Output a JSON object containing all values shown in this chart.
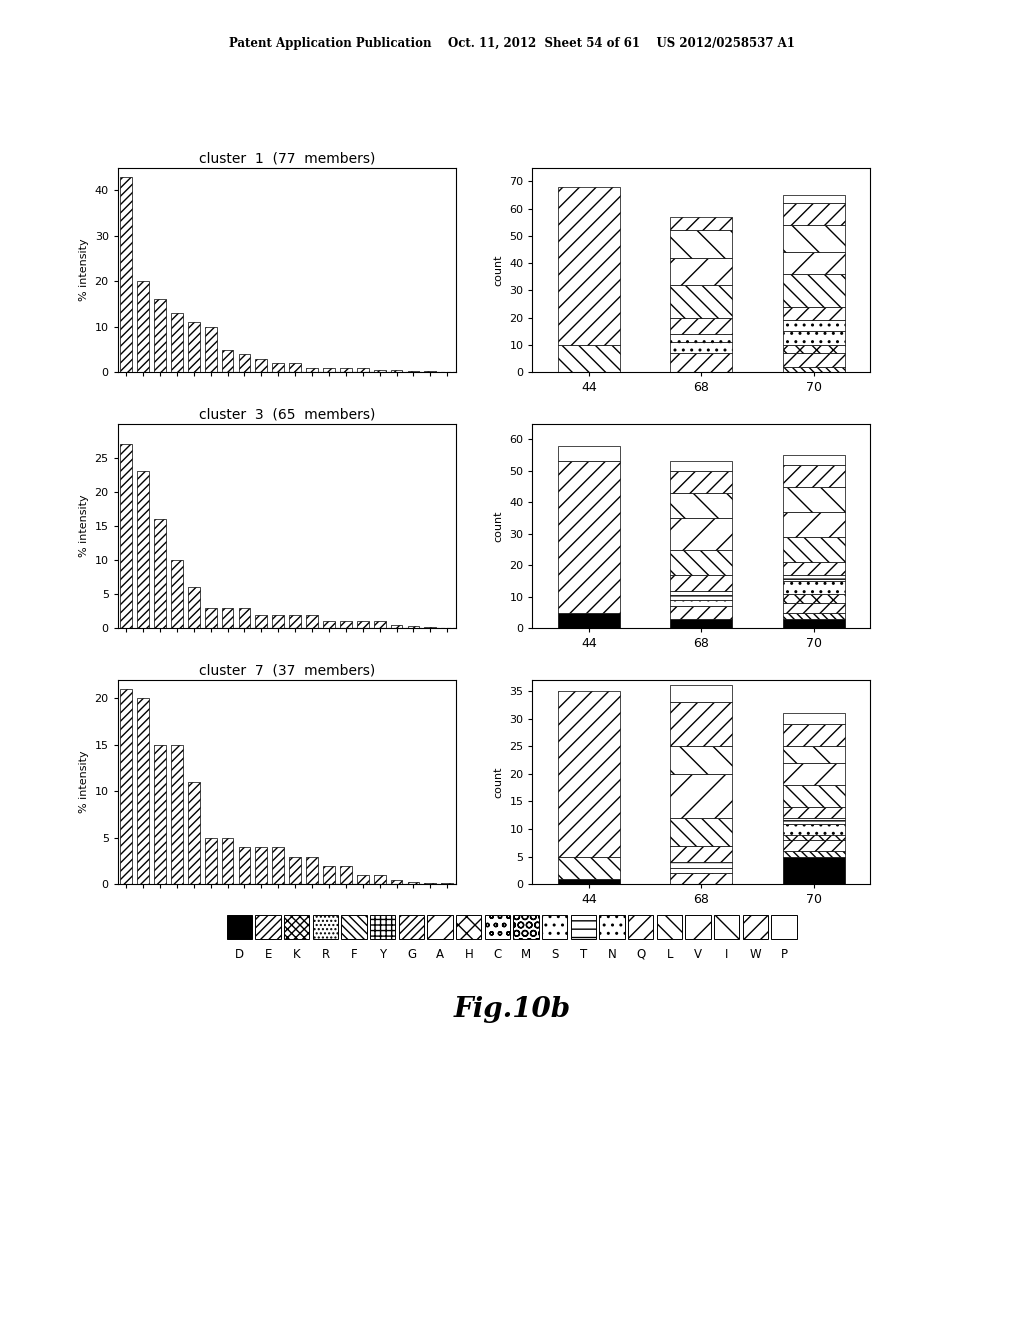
{
  "header_text": "Patent Application Publication    Oct. 11, 2012  Sheet 54 of 61    US 2012/0258537 A1",
  "fig_label": "Fig.10b",
  "clusters": [
    {
      "title": "cluster  1  (77  members)",
      "bar_values": [
        43,
        20,
        16,
        13,
        11,
        10,
        5,
        4,
        3,
        2,
        2,
        1,
        1,
        1,
        1,
        0.5,
        0.5,
        0.3,
        0.2,
        0.1
      ],
      "ylim": [
        0,
        45
      ],
      "yticks": [
        0,
        10,
        20,
        30,
        40
      ],
      "count_ylim": [
        0,
        75
      ],
      "count_yticks": [
        0,
        10,
        20,
        30,
        40,
        50,
        60,
        70
      ],
      "stack_44": [
        0,
        0,
        0,
        0,
        0,
        0,
        0,
        0,
        0,
        0,
        0,
        0,
        0,
        0,
        0,
        10,
        0,
        0,
        58,
        0
      ],
      "stack_68": [
        0,
        0,
        0,
        0,
        0,
        0,
        0,
        7,
        0,
        0,
        0,
        4,
        0,
        3,
        6,
        12,
        10,
        10,
        5,
        0
      ],
      "stack_70": [
        0,
        0,
        0,
        0,
        2,
        0,
        0,
        5,
        3,
        0,
        0,
        5,
        0,
        4,
        5,
        12,
        8,
        10,
        8,
        3
      ]
    },
    {
      "title": "cluster  3  (65  members)",
      "bar_values": [
        27,
        23,
        16,
        10,
        6,
        3,
        3,
        3,
        2,
        2,
        2,
        2,
        1,
        1,
        1,
        1,
        0.5,
        0.3,
        0.2,
        0.1
      ],
      "ylim": [
        0,
        30
      ],
      "yticks": [
        0,
        5,
        10,
        15,
        20,
        25
      ],
      "count_ylim": [
        0,
        65
      ],
      "count_yticks": [
        0,
        10,
        20,
        30,
        40,
        50,
        60
      ],
      "stack_44": [
        5,
        0,
        0,
        0,
        0,
        0,
        0,
        0,
        0,
        0,
        0,
        0,
        0,
        0,
        0,
        0,
        0,
        0,
        48,
        5
      ],
      "stack_68": [
        3,
        0,
        0,
        0,
        0,
        0,
        0,
        4,
        0,
        0,
        0,
        2,
        3,
        0,
        5,
        8,
        10,
        8,
        7,
        3
      ],
      "stack_70": [
        3,
        0,
        0,
        0,
        2,
        0,
        0,
        3,
        3,
        0,
        0,
        4,
        2,
        0,
        4,
        8,
        8,
        8,
        7,
        3
      ]
    },
    {
      "title": "cluster  7  (37  members)",
      "bar_values": [
        21,
        20,
        15,
        15,
        11,
        5,
        5,
        4,
        4,
        4,
        3,
        3,
        2,
        2,
        1,
        1,
        0.5,
        0.3,
        0.2,
        0.1
      ],
      "ylim": [
        0,
        22
      ],
      "yticks": [
        0,
        5,
        10,
        15,
        20
      ],
      "count_ylim": [
        0,
        37
      ],
      "count_yticks": [
        0,
        5,
        10,
        15,
        20,
        25,
        30,
        35
      ],
      "stack_44": [
        1,
        0,
        0,
        0,
        0,
        0,
        0,
        0,
        0,
        0,
        0,
        0,
        0,
        0,
        0,
        4,
        0,
        0,
        30,
        0
      ],
      "stack_68": [
        0,
        0,
        0,
        0,
        0,
        0,
        0,
        2,
        0,
        0,
        0,
        1,
        1,
        0,
        3,
        5,
        8,
        5,
        8,
        3
      ],
      "stack_70": [
        5,
        0,
        0,
        0,
        1,
        0,
        0,
        2,
        1,
        0,
        0,
        2,
        1,
        0,
        2,
        4,
        4,
        3,
        4,
        2
      ]
    }
  ],
  "amino_acids": [
    "D",
    "E",
    "K",
    "R",
    "F",
    "Y",
    "G",
    "A",
    "H",
    "C",
    "M",
    "S",
    "T",
    "N",
    "Q",
    "L",
    "V",
    "I",
    "W",
    "P"
  ]
}
